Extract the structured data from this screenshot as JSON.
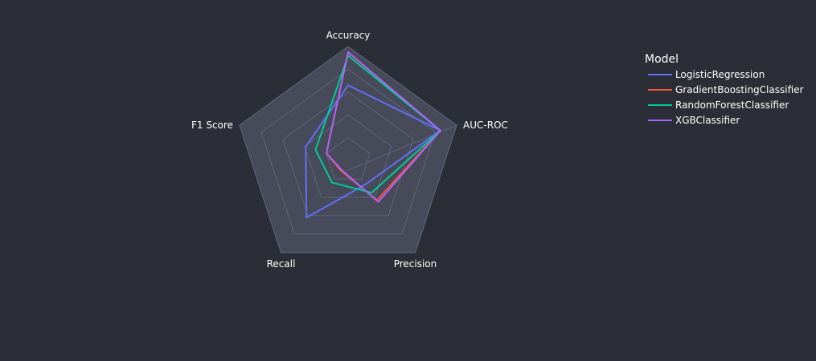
{
  "chart_data": {
    "type": "radar",
    "title": "",
    "axes": [
      "Accuracy",
      "AUC-ROC",
      "Precision",
      "Recall",
      "F1 Score"
    ],
    "range": [
      0,
      1
    ],
    "grid": true,
    "legend": {
      "title": "Model",
      "placement": "right"
    },
    "series": [
      {
        "name": "LogisticRegression",
        "color": "#636efa",
        "values": [
          0.66,
          0.85,
          0.26,
          0.62,
          0.39
        ]
      },
      {
        "name": "GradientBoostingClassifier",
        "color": "#ef553b",
        "values": [
          0.95,
          0.85,
          0.43,
          0.11,
          0.2
        ]
      },
      {
        "name": "RandomForestClassifier",
        "color": "#00cc96",
        "values": [
          0.92,
          0.85,
          0.35,
          0.24,
          0.3
        ]
      },
      {
        "name": "XGBClassifier",
        "color": "#ab63fa",
        "values": [
          0.95,
          0.85,
          0.45,
          0.1,
          0.2
        ]
      }
    ]
  }
}
